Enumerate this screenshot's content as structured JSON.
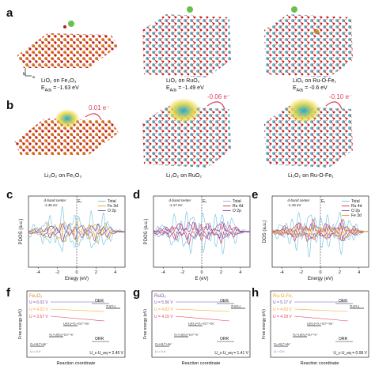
{
  "panel_labels": {
    "a": "a",
    "b": "b",
    "c": "c",
    "d": "d",
    "e": "e",
    "f": "f",
    "g": "g",
    "h": "h"
  },
  "row_a": [
    {
      "caption": "LiO₂ on Fe₂O₃",
      "energy": "E",
      "energy_sub": "Ads",
      "energy_val": " = -1.63 eV"
    },
    {
      "caption": "LiO₂ on RuO₂",
      "energy": "E",
      "energy_sub": "Ads",
      "energy_val": " = -1.49 eV"
    },
    {
      "caption": "LiO₂ on Ru-O-Fe₁",
      "energy": "E",
      "energy_sub": "Ads",
      "energy_val": " = -0.6 eV"
    }
  ],
  "row_b": [
    {
      "caption": "Li₂O₂ on Fe₂O₃",
      "charge": "0.01 e⁻"
    },
    {
      "caption": "Li₂O₂ on RuO₂",
      "charge": "-0.06 e⁻"
    },
    {
      "caption": "Li₂O₂ on Ru-O-Fe₁",
      "charge": "-0.10 e⁻"
    }
  ],
  "axes_label": {
    "c": "b",
    "a": "a"
  },
  "chart_data": [
    {
      "type": "line",
      "panel": "c",
      "ylabel": "PDOS (a.u.)",
      "xlabel": "Enegy (eV)",
      "xticks": [
        "-4",
        "-2",
        "0",
        "2",
        "4"
      ],
      "annotation": "d-band center",
      "annotation_val": "-1.45 eV",
      "fermi": "E",
      "fermi_sub": "f",
      "series": [
        {
          "name": "Total",
          "color": "#7ec8e3"
        },
        {
          "name": "Fe 3d",
          "color": "#f5a623"
        },
        {
          "name": "O 2p",
          "color": "#7b52ab"
        }
      ]
    },
    {
      "type": "line",
      "panel": "d",
      "ylabel": "PDOS (a.u.)",
      "xlabel": "E (eV)",
      "xticks": [
        "-4",
        "-2",
        "0",
        "2",
        "4"
      ],
      "annotation": "d-band center",
      "annotation_val": "-1.17 eV",
      "fermi": "E",
      "fermi_sub": "f",
      "series": [
        {
          "name": "Total",
          "color": "#7ec8e3"
        },
        {
          "name": "Ru 4d",
          "color": "#e0405b"
        },
        {
          "name": "O 2p",
          "color": "#7b52ab"
        }
      ]
    },
    {
      "type": "line",
      "panel": "e",
      "ylabel": "DOS (a.u.)",
      "xlabel": "Energy (eV)",
      "xticks": [
        "-4",
        "-2",
        "0",
        "2",
        "4"
      ],
      "annotation": "d-band center",
      "annotation_val": "-1.18 eV",
      "fermi": "E",
      "fermi_sub": "f",
      "series": [
        {
          "name": "Total",
          "color": "#7ec8e3"
        },
        {
          "name": "Ru 4d",
          "color": "#e0405b"
        },
        {
          "name": "O 2p",
          "color": "#7b52ab"
        },
        {
          "name": "Fe 3d",
          "color": "#f5a623"
        }
      ]
    },
    {
      "type": "line",
      "panel": "f",
      "title": "Fe₂O₃",
      "ylabel": "Free energy (eV)",
      "xlabel": "Reaction coordinate",
      "oer": "OER",
      "orr": "ORR",
      "ulabels": [
        "U = 6.02 V",
        "U = 4.02 V",
        "U = 3.57 V"
      ],
      "states": [
        "2Li(O₂)",
        "Li(O₂)+O₂+2Li⁺+2e⁻",
        "O₂+Li(O₂)+2Li⁺+e⁻",
        "O₂+4Li⁺+4e⁻",
        "U = 0 V"
      ],
      "eta": "U_c-U_eq = 2.45 V"
    },
    {
      "type": "line",
      "panel": "g",
      "title": "RuO₂",
      "ylabel": "Free energy (eV)",
      "xlabel": "Reaction coordinate",
      "oer": "OER",
      "orr": "ORR",
      "ulabels": [
        "U = 5.56 V",
        "U = 4.63 V",
        "U = 4.15 V"
      ],
      "states": [
        "2Li(O₂)",
        "Li(O₂)+O₂+2Li⁺+2e⁻",
        "O₂+Li(O₂)+2Li⁺+e⁻",
        "O₂+4Li⁺+4e⁻",
        "U = 0 V"
      ],
      "eta": "U_c-U_eq = 1.41 V"
    },
    {
      "type": "line",
      "panel": "h",
      "title": "Ru-O-Fe₁",
      "ylabel": "Free energy (eV)",
      "xlabel": "Reaction coordinate",
      "oer": "OER",
      "orr": "ORR",
      "ulabels": [
        "U = 5.17 V",
        "U = 4.63 V",
        "U = 4.18 V"
      ],
      "states": [
        "2Li(O₂)",
        "Li(O₂)+O₂+2Li⁺+2e⁻",
        "O₂+Li(O₂)+2Li⁺+e⁻",
        "O₂+4Li⁺+4e⁻",
        "U = 0 V"
      ],
      "eta": "U_c-U_eq = 0.99 V"
    }
  ]
}
